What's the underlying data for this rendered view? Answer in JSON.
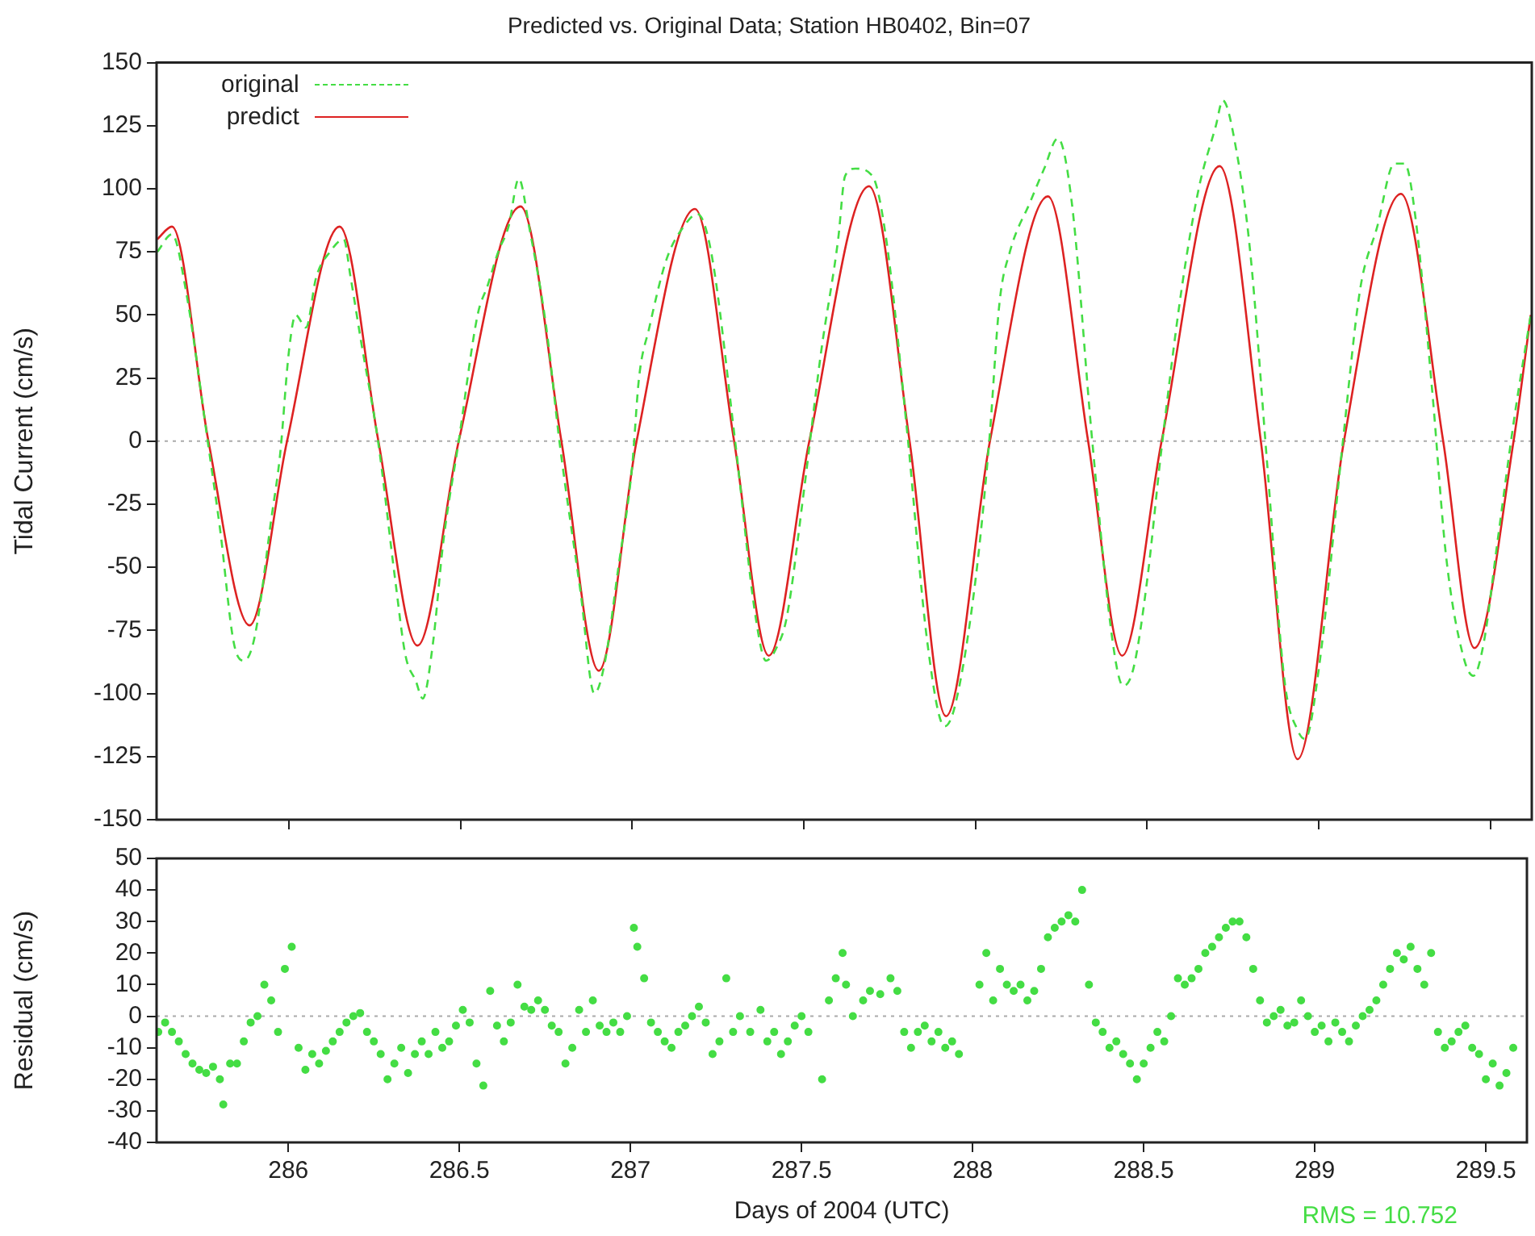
{
  "chart_data": [
    {
      "type": "line",
      "title": "Predicted vs. Original Data; Station HB0402, Bin=07",
      "ylabel": "Tidal Current (cm/s)",
      "xlim": [
        285.615,
        289.62
      ],
      "xticks": [
        286,
        286.5,
        287,
        287.5,
        288,
        288.5,
        289,
        289.5
      ],
      "ylim": [
        -150,
        150
      ],
      "yticks": [
        -150,
        -125,
        -100,
        -75,
        -50,
        -25,
        0,
        25,
        50,
        75,
        100,
        125,
        150
      ],
      "tick_labels": "y",
      "grid": false,
      "legend": "top left",
      "ref_lines": [
        {
          "axis": "y",
          "value": 0,
          "color": "#aaaaaa",
          "line_style": "dotted"
        }
      ],
      "series": [
        {
          "name": "original",
          "color": "#44dd44",
          "line_style": "dashed",
          "x": [
            285.617,
            285.66,
            285.7,
            285.766,
            285.8,
            285.84,
            285.87,
            285.9,
            285.95,
            285.975,
            286.0,
            286.02,
            286.05,
            286.08,
            286.12,
            286.16,
            286.18,
            286.21,
            286.26,
            286.31,
            286.34,
            286.37,
            286.39,
            286.42,
            286.45,
            286.495,
            286.55,
            286.58,
            286.61,
            286.64,
            286.67,
            286.7,
            286.75,
            286.79,
            286.85,
            286.89,
            286.92,
            286.96,
            287.0,
            287.02,
            287.05,
            287.1,
            287.15,
            287.19,
            287.23,
            287.3,
            287.36,
            287.39,
            287.42,
            287.45,
            287.5,
            287.55,
            287.6,
            287.62,
            287.65,
            287.7,
            287.74,
            287.8,
            287.86,
            287.91,
            287.94,
            288.0,
            288.04,
            288.07,
            288.1,
            288.16,
            288.2,
            288.24,
            288.28,
            288.34,
            288.4,
            288.43,
            288.46,
            288.5,
            288.54,
            288.6,
            288.65,
            288.7,
            288.72,
            288.76,
            288.8,
            288.85,
            288.9,
            288.94,
            288.96,
            289.0,
            289.07,
            289.12,
            289.17,
            289.22,
            289.25,
            289.28,
            289.33,
            289.37,
            289.42,
            289.45,
            289.48,
            289.52,
            289.57,
            289.617
          ],
          "values": [
            75,
            82,
            60,
            -2,
            -35,
            -80,
            -87,
            -78,
            -30,
            -5,
            35,
            50,
            45,
            65,
            75,
            80,
            65,
            40,
            0,
            -55,
            -85,
            -95,
            -102,
            -80,
            -40,
            0,
            50,
            62,
            75,
            85,
            104,
            85,
            45,
            -2,
            -60,
            -100,
            -88,
            -50,
            -10,
            25,
            45,
            72,
            85,
            90,
            75,
            0,
            -70,
            -87,
            -82,
            -70,
            -20,
            35,
            80,
            105,
            108,
            105,
            80,
            5,
            -80,
            -113,
            -105,
            -55,
            0,
            55,
            75,
            95,
            108,
            120,
            95,
            0,
            -80,
            -97,
            -90,
            -55,
            -5,
            60,
            100,
            125,
            135,
            115,
            75,
            -10,
            -95,
            -115,
            -118,
            -90,
            0,
            60,
            85,
            110,
            110,
            90,
            20,
            -45,
            -85,
            -93,
            -80,
            -40,
            10,
            50
          ]
        },
        {
          "name": "predict",
          "color": "#dd2222",
          "line_style": "solid",
          "x": [
            285.617,
            285.66,
            285.766,
            285.886,
            285.995,
            286.148,
            286.261,
            286.375,
            286.495,
            286.675,
            286.794,
            286.903,
            287.013,
            287.183,
            287.297,
            287.398,
            287.516,
            287.69,
            287.808,
            287.914,
            288.042,
            288.211,
            288.328,
            288.427,
            288.542,
            288.711,
            288.831,
            288.938,
            289.073,
            289.239,
            289.362,
            289.453,
            289.567,
            289.617
          ],
          "values": [
            80,
            85,
            0,
            -73,
            0,
            85,
            0,
            -81,
            0,
            93,
            0,
            -91,
            0,
            92,
            0,
            -85,
            0,
            101,
            0,
            -109,
            0,
            97,
            0,
            -85,
            0,
            109,
            0,
            -126,
            0,
            98,
            0,
            -82,
            0,
            50
          ]
        }
      ]
    },
    {
      "type": "scatter",
      "ylabel": "Residual (cm/s)",
      "xlabel": "Days of 2004 (UTC)",
      "xlim": [
        285.615,
        289.62
      ],
      "xticks": [
        286,
        286.5,
        287,
        287.5,
        288,
        288.5,
        289,
        289.5
      ],
      "ylim": [
        -40,
        50
      ],
      "yticks": [
        -40,
        -30,
        -20,
        -10,
        0,
        10,
        20,
        30,
        40,
        50
      ],
      "grid": false,
      "marker": "circle",
      "ref_lines": [
        {
          "axis": "y",
          "value": 0,
          "color": "#aaaaaa",
          "line_style": "dotted"
        }
      ],
      "annotations": [
        "RMS = 10.752"
      ],
      "series": [
        {
          "color": "#44dd44",
          "x": [
            285.62,
            285.64,
            285.66,
            285.68,
            285.7,
            285.72,
            285.74,
            285.76,
            285.78,
            285.8,
            285.81,
            285.83,
            285.85,
            285.87,
            285.89,
            285.91,
            285.93,
            285.95,
            285.97,
            285.99,
            286.01,
            286.03,
            286.05,
            286.07,
            286.09,
            286.11,
            286.13,
            286.15,
            286.17,
            286.19,
            286.21,
            286.23,
            286.25,
            286.27,
            286.29,
            286.31,
            286.33,
            286.35,
            286.37,
            286.39,
            286.41,
            286.43,
            286.45,
            286.47,
            286.49,
            286.51,
            286.53,
            286.55,
            286.57,
            286.59,
            286.61,
            286.63,
            286.65,
            286.67,
            286.69,
            286.71,
            286.73,
            286.75,
            286.77,
            286.79,
            286.81,
            286.83,
            286.85,
            286.87,
            286.89,
            286.91,
            286.93,
            286.95,
            286.97,
            286.99,
            287.01,
            287.02,
            287.04,
            287.06,
            287.08,
            287.1,
            287.12,
            287.14,
            287.16,
            287.18,
            287.2,
            287.22,
            287.24,
            287.26,
            287.28,
            287.3,
            287.32,
            287.35,
            287.38,
            287.4,
            287.42,
            287.44,
            287.46,
            287.48,
            287.5,
            287.52,
            287.56,
            287.58,
            287.6,
            287.62,
            287.63,
            287.65,
            287.68,
            287.7,
            287.73,
            287.76,
            287.78,
            287.8,
            287.82,
            287.84,
            287.86,
            287.88,
            287.9,
            287.92,
            287.94,
            287.96,
            288.02,
            288.04,
            288.06,
            288.08,
            288.1,
            288.12,
            288.14,
            288.16,
            288.18,
            288.2,
            288.22,
            288.24,
            288.26,
            288.28,
            288.3,
            288.32,
            288.34,
            288.36,
            288.38,
            288.4,
            288.42,
            288.44,
            288.46,
            288.48,
            288.5,
            288.52,
            288.54,
            288.56,
            288.58,
            288.6,
            288.62,
            288.64,
            288.66,
            288.68,
            288.7,
            288.72,
            288.74,
            288.76,
            288.78,
            288.8,
            288.82,
            288.84,
            288.86,
            288.88,
            288.9,
            288.92,
            288.94,
            288.96,
            288.98,
            289.0,
            289.02,
            289.04,
            289.06,
            289.08,
            289.1,
            289.12,
            289.14,
            289.16,
            289.18,
            289.2,
            289.22,
            289.24,
            289.26,
            289.28,
            289.3,
            289.32,
            289.34,
            289.36,
            289.38,
            289.4,
            289.42,
            289.44,
            289.46,
            289.48,
            289.5,
            289.52,
            289.54,
            289.56,
            289.58
          ],
          "values": [
            -5,
            -2,
            -5,
            -8,
            -12,
            -15,
            -17,
            -18,
            -16,
            -20,
            -28,
            -15,
            -15,
            -8,
            -2,
            0,
            10,
            5,
            -5,
            15,
            22,
            -10,
            -17,
            -12,
            -15,
            -11,
            -8,
            -5,
            -2,
            0,
            1,
            -5,
            -8,
            -12,
            -20,
            -15,
            -10,
            -18,
            -12,
            -8,
            -12,
            -5,
            -10,
            -8,
            -3,
            2,
            -2,
            -15,
            -22,
            8,
            -3,
            -8,
            -2,
            10,
            3,
            2,
            5,
            2,
            -3,
            -5,
            -15,
            -10,
            2,
            -5,
            5,
            -3,
            -5,
            -2,
            -5,
            0,
            28,
            22,
            12,
            -2,
            -5,
            -8,
            -10,
            -5,
            -3,
            0,
            3,
            -2,
            -12,
            -8,
            12,
            -5,
            0,
            -5,
            2,
            -8,
            -5,
            -12,
            -8,
            -3,
            0,
            -5,
            -20,
            5,
            12,
            20,
            10,
            0,
            5,
            8,
            7,
            12,
            8,
            -5,
            -10,
            -5,
            -3,
            -8,
            -5,
            -10,
            -8,
            -12,
            10,
            20,
            5,
            15,
            10,
            8,
            10,
            5,
            8,
            15,
            25,
            28,
            30,
            32,
            30,
            40,
            10,
            -2,
            -5,
            -10,
            -8,
            -12,
            -15,
            -20,
            -15,
            -10,
            -5,
            -8,
            0,
            12,
            10,
            12,
            15,
            20,
            22,
            25,
            28,
            30,
            30,
            25,
            15,
            5,
            -2,
            0,
            2,
            -3,
            -2,
            5,
            0,
            -5,
            -3,
            -8,
            -2,
            -5,
            -8,
            -3,
            0,
            2,
            5,
            10,
            15,
            20,
            18,
            22,
            15,
            10,
            20,
            -5,
            -10,
            -8,
            -5,
            -3,
            -10,
            -12,
            -20,
            -15,
            -22,
            -18,
            -10
          ]
        }
      ]
    }
  ]
}
